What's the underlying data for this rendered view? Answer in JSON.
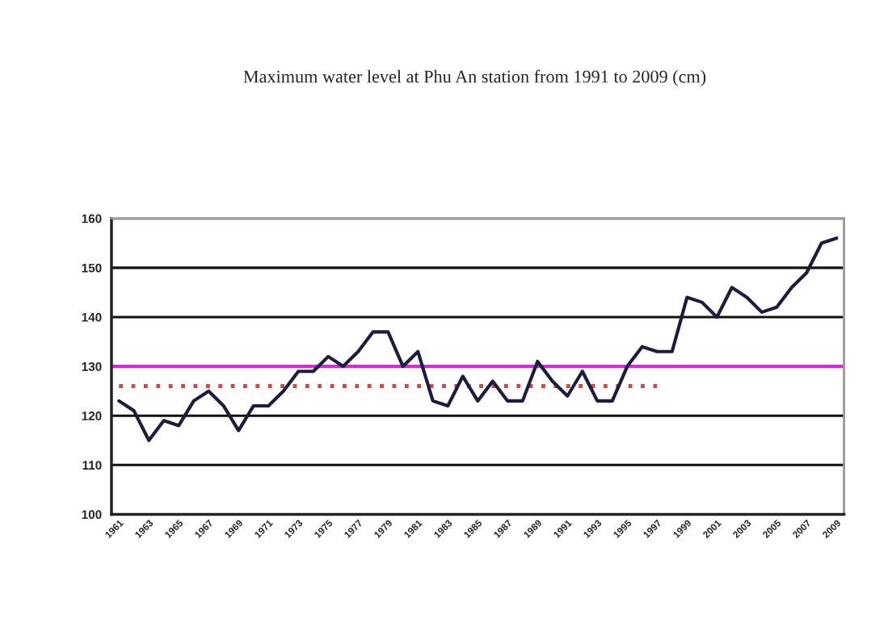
{
  "chart_data": {
    "type": "line",
    "title": "Maximum water level at Phu An station from 1991 to 2009 (cm)",
    "categories": [
      "1961",
      null,
      "1963",
      null,
      "1965",
      null,
      "1967",
      null,
      "1969",
      null,
      "1971",
      null,
      "1973",
      null,
      "1975",
      null,
      "1977",
      null,
      "1979",
      null,
      "1981",
      null,
      "1983",
      null,
      "1985",
      null,
      "1987",
      null,
      "1989",
      null,
      "1991",
      null,
      "1993",
      null,
      "1995",
      null,
      "1997",
      null,
      "1999",
      null,
      "2001",
      null,
      "2003",
      null,
      "2005",
      null,
      "2007",
      null,
      "2009"
    ],
    "series": [
      {
        "color": "#1c1c3c",
        "line_style": "solid",
        "values": [
          123,
          121,
          115,
          119,
          118,
          123,
          125,
          122,
          117,
          122,
          122,
          125,
          129,
          129,
          132,
          130,
          133,
          137,
          137,
          130,
          133,
          123,
          122,
          128,
          123,
          127,
          123,
          123,
          131,
          127,
          124,
          129,
          123,
          123,
          130,
          134,
          133,
          133,
          144,
          143,
          140,
          146,
          144,
          141,
          142,
          146,
          149,
          155,
          156
        ]
      },
      {
        "color": "#c0504d",
        "line_style": "dotted",
        "values": [
          126,
          126,
          126,
          126,
          126,
          126,
          126,
          126,
          126,
          126,
          126,
          126,
          126,
          126,
          126,
          126,
          126,
          126,
          126,
          126,
          126,
          126,
          126,
          126,
          126,
          126,
          126,
          126,
          126,
          126,
          126,
          126,
          126,
          126,
          126,
          126,
          126,
          null,
          null,
          null,
          null,
          null,
          null,
          null,
          null,
          null,
          null,
          null,
          null
        ]
      }
    ],
    "ref_lines": [
      {
        "axis": "y",
        "value": 130,
        "color": "#cc33cc",
        "line_style": "solid"
      }
    ],
    "ylim": [
      100,
      160
    ],
    "yticks": [
      100,
      110,
      120,
      130,
      140,
      150,
      160
    ],
    "grid": "y",
    "marker": "none",
    "legend": false
  }
}
